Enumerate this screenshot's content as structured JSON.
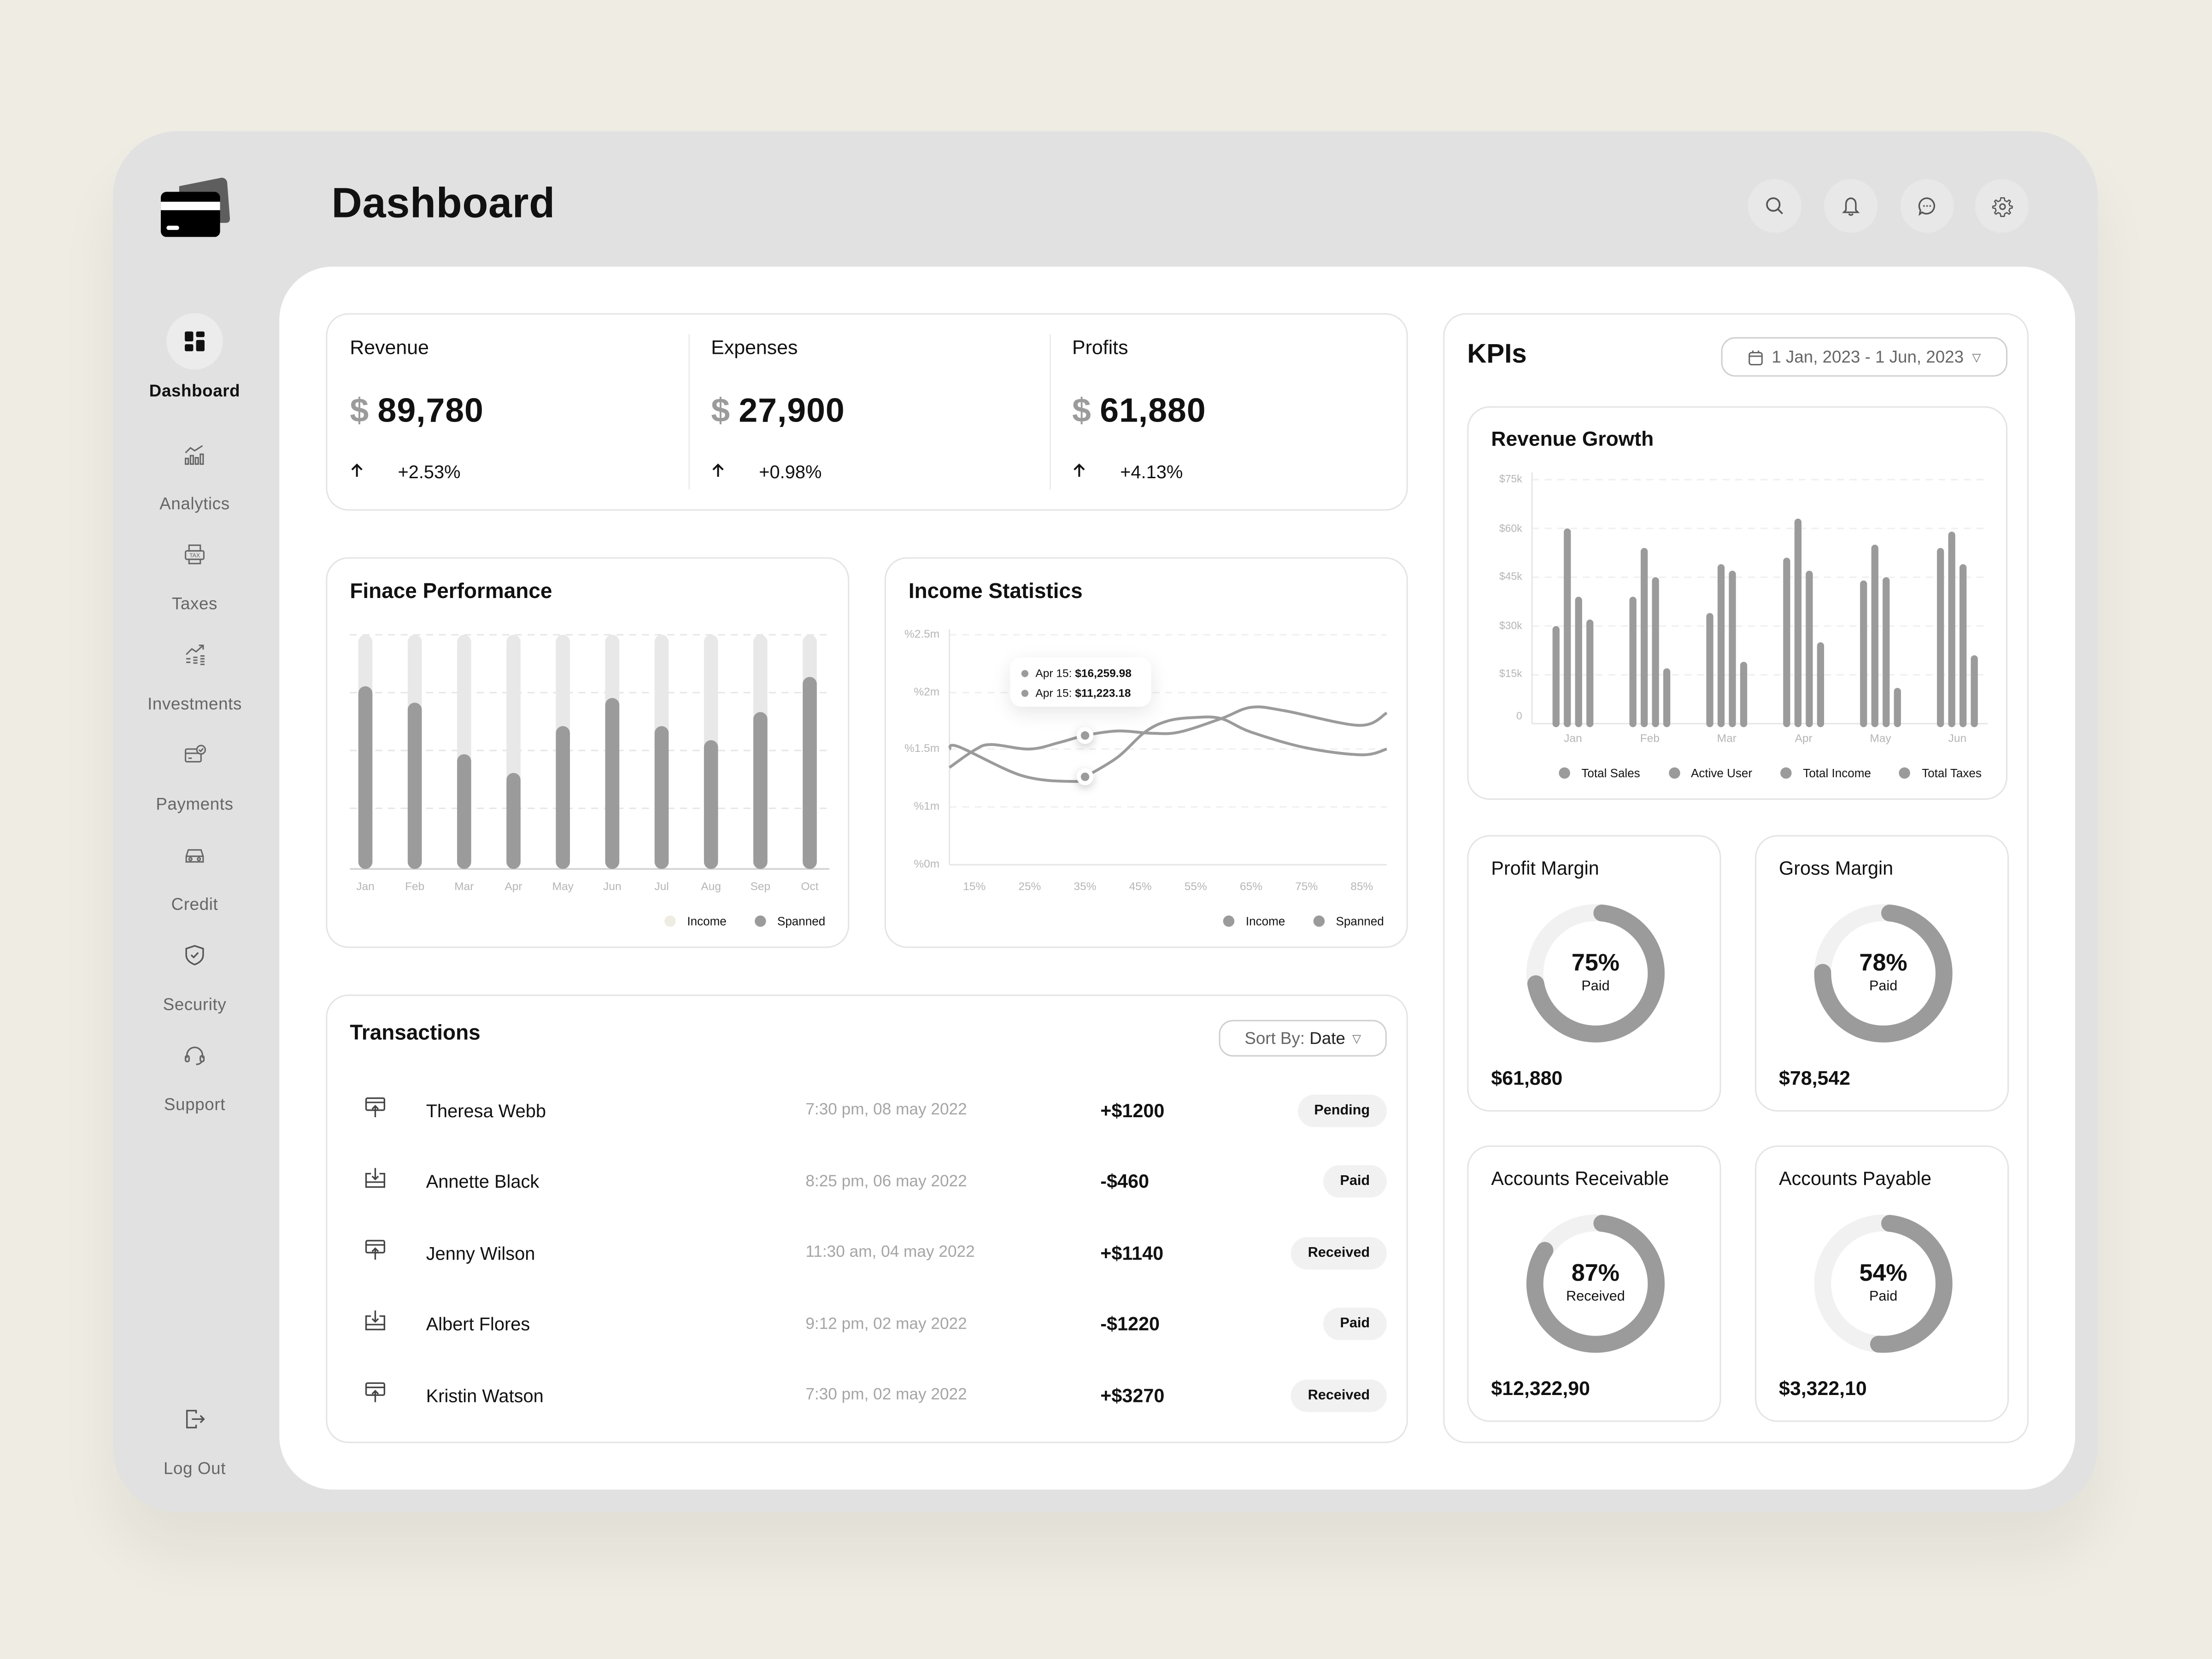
{
  "header": {
    "title": "Dashboard",
    "icons": [
      "search-icon",
      "bell-icon",
      "chat-icon",
      "gear-icon"
    ]
  },
  "sidebar": {
    "items": [
      {
        "label": "Dashboard",
        "icon": "grid-icon",
        "active": true
      },
      {
        "label": "Analytics",
        "icon": "analytics-icon"
      },
      {
        "label": "Taxes",
        "icon": "tax-icon"
      },
      {
        "label": "Investments",
        "icon": "investments-icon"
      },
      {
        "label": "Payments",
        "icon": "payments-icon"
      },
      {
        "label": "Credit",
        "icon": "credit-icon"
      },
      {
        "label": "Security",
        "icon": "shield-icon"
      },
      {
        "label": "Support",
        "icon": "headset-icon"
      }
    ],
    "logout": "Log Out"
  },
  "stats": [
    {
      "label": "Revenue",
      "currency": "$",
      "value": "89,780",
      "change": "+2.53%"
    },
    {
      "label": "Expenses",
      "currency": "$",
      "value": "27,900",
      "change": "+0.98%"
    },
    {
      "label": "Profits",
      "currency": "$",
      "value": "61,880",
      "change": "+4.13%"
    }
  ],
  "finance": {
    "title": "Finace Performance"
  },
  "income": {
    "title": "Income Statistics",
    "tooltip": [
      {
        "label": "Apr 15: ",
        "value": "$16,259.98"
      },
      {
        "label": "Apr 15: ",
        "value": "$11,223.18"
      }
    ]
  },
  "transactions": {
    "title": "Transactions",
    "sort_prefix": "Sort By: ",
    "sort_value": "Date",
    "rows": [
      {
        "name": "Theresa Webb",
        "date": "7:30 pm, 08 may 2022",
        "amount": "+$1200",
        "status": "Pending",
        "icon": "upload-icon"
      },
      {
        "name": "Annette Black",
        "date": "8:25 pm, 06 may 2022",
        "amount": "-$460",
        "status": "Paid",
        "icon": "download-icon"
      },
      {
        "name": "Jenny Wilson",
        "date": "11:30 am, 04 may 2022",
        "amount": "+$1140",
        "status": "Received",
        "icon": "upload-icon"
      },
      {
        "name": "Albert Flores",
        "date": "9:12 pm, 02 may 2022",
        "amount": "-$1220",
        "status": "Paid",
        "icon": "download-icon"
      },
      {
        "name": "Kristin Watson",
        "date": "7:30 pm, 02 may 2022",
        "amount": "+$3270",
        "status": "Received",
        "icon": "upload-icon"
      }
    ]
  },
  "kpis": {
    "title": "KPIs",
    "date_range": "1 Jan, 2023 - 1 Jun, 2023",
    "revenue_growth_title": "Revenue Growth",
    "donuts": [
      {
        "title": "Profit Margin",
        "percent": 75,
        "percent_label": "75%",
        "sub": "Paid",
        "value": "$61,880"
      },
      {
        "title": "Gross Margin",
        "percent": 78,
        "percent_label": "78%",
        "sub": "Paid",
        "value": "$78,542"
      },
      {
        "title": "Accounts Receivable",
        "percent": 87,
        "percent_label": "87%",
        "sub": "Received",
        "value": "$12,322,90"
      },
      {
        "title": "Accounts Payable",
        "percent": 54,
        "percent_label": "54%",
        "sub": "Paid",
        "value": "$3,322,10"
      }
    ]
  },
  "colors": {
    "bar": "#9b9b9b",
    "bar_track": "#e8e8e8",
    "income_legend": "#efede3",
    "frame": "#e1e1e1",
    "background": "#efede3"
  },
  "chart_data": [
    {
      "type": "bar",
      "title": "Finace Performance",
      "categories": [
        "Jan",
        "Feb",
        "Mar",
        "Apr",
        "May",
        "Jun",
        "Jul",
        "Aug",
        "Sep",
        "Oct"
      ],
      "series": [
        {
          "name": "Income",
          "values": [
            1,
            1,
            1,
            1,
            1,
            1,
            1,
            1,
            1,
            1
          ]
        },
        {
          "name": "Spanned",
          "values": [
            0.78,
            0.71,
            0.49,
            0.41,
            0.61,
            0.73,
            0.61,
            0.55,
            0.67,
            0.82
          ]
        }
      ],
      "legend": "bottom-right",
      "grid": true
    },
    {
      "type": "line",
      "title": "Income Statistics",
      "x_ticks": [
        "15%",
        "25%",
        "35%",
        "45%",
        "55%",
        "65%",
        "75%",
        "85%"
      ],
      "y_ticks": [
        "%0m",
        "%1m",
        "%1.5m",
        "%2m",
        "%2.5m"
      ],
      "y_tick_values": [
        0,
        1,
        1.5,
        2,
        2.5
      ],
      "xlim": [
        10.5,
        89.5
      ],
      "series": [
        {
          "name": "Income",
          "points": [
            [
              10.5,
              1.5
            ],
            [
              12.2,
              1.52
            ],
            [
              23.6,
              1.27
            ],
            [
              32.8,
              1.22
            ],
            [
              35,
              1.26
            ],
            [
              40.9,
              1.43
            ],
            [
              45.8,
              1.65
            ],
            [
              50,
              1.75
            ],
            [
              55,
              1.78
            ],
            [
              59.6,
              1.77
            ],
            [
              65,
              1.65
            ],
            [
              75,
              1.51
            ],
            [
              85,
              1.45
            ],
            [
              89.5,
              1.5
            ]
          ]
        },
        {
          "name": "Spanned",
          "points": [
            [
              10.5,
              1.34
            ],
            [
              15,
              1.49
            ],
            [
              18,
              1.54
            ],
            [
              25,
              1.5
            ],
            [
              30.5,
              1.56
            ],
            [
              35,
              1.62
            ],
            [
              40.9,
              1.66
            ],
            [
              47,
              1.64
            ],
            [
              52,
              1.65
            ],
            [
              59.6,
              1.77
            ],
            [
              65,
              1.87
            ],
            [
              71,
              1.84
            ],
            [
              84.5,
              1.71
            ],
            [
              89.5,
              1.82
            ]
          ]
        }
      ],
      "highlight_x": 35,
      "legend": "bottom-right",
      "grid": true
    },
    {
      "type": "bar",
      "title": "Revenue Growth",
      "categories": [
        "Jan",
        "Feb",
        "Mar",
        "Apr",
        "May",
        "Jun"
      ],
      "y_ticks": [
        "0",
        "$15k",
        "$30k",
        "$45k",
        "$60k",
        "$75k"
      ],
      "ylim": [
        0,
        75000
      ],
      "series": [
        {
          "name": "Total Sales",
          "values": [
            30000,
            39000,
            34000,
            51000,
            44000,
            54000
          ]
        },
        {
          "name": "Active User",
          "values": [
            60000,
            54000,
            49000,
            63000,
            55000,
            59000
          ]
        },
        {
          "name": "Total Income",
          "values": [
            39000,
            45000,
            47000,
            47000,
            45000,
            49000
          ]
        },
        {
          "name": "Total Taxes",
          "values": [
            32000,
            17000,
            19000,
            25000,
            11000,
            21000
          ]
        }
      ],
      "legend": "bottom",
      "grid": true
    }
  ]
}
